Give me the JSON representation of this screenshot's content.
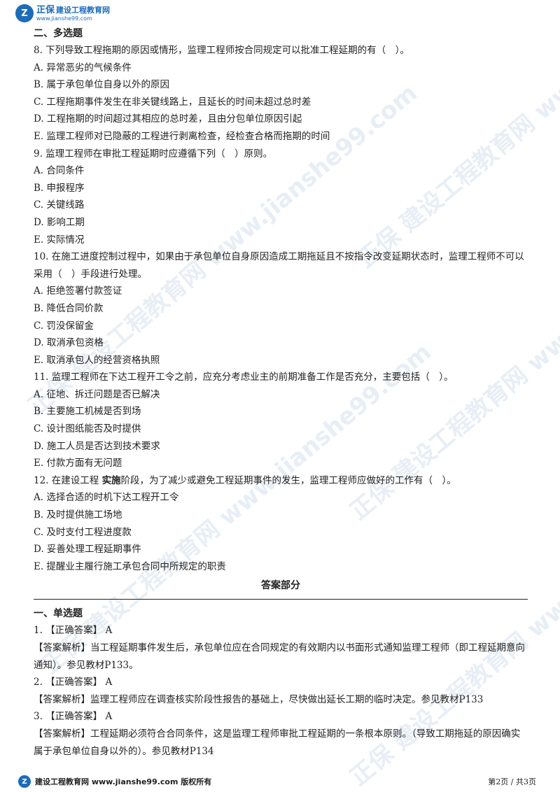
{
  "header": {
    "brand": "正保",
    "name": "建设工程教育网",
    "url": "www.jianshe99.com",
    "logo_glyph": "Z"
  },
  "watermark": "正保 建设工程教育网 www.jianshe99.com",
  "section_multi": "二、多选题",
  "questions": [
    {
      "stem": "8. 下列导致工程拖期的原因或情形，监理工程师按合同规定可以批准工程延期的有（　）。",
      "options": [
        "A. 异常恶劣的气候条件",
        "B. 属于承包单位自身以外的原因",
        "C. 工程拖期事件发生在非关键线路上，且延长的时间未超过总时差",
        "D. 工程拖期的时间超过其相应的总时差，且由分包单位原因引起",
        "E. 监理工程师对已隐蔽的工程进行剥离检查，经检查合格而拖期的时间"
      ]
    },
    {
      "stem": "9. 监理工程师在审批工程延期时应遵循下列（　）原则。",
      "options": [
        "A. 合同条件",
        "B. 申报程序",
        "C. 关键线路",
        "D. 影响工期",
        "E. 实际情况"
      ]
    },
    {
      "stem": "10. 在施工进度控制过程中，如果由于承包单位自身原因造成工期拖延且不按指令改变延期状态时，监理工程师不可以采用（　）手段进行处理。",
      "options": [
        "A. 拒绝签署付款签证",
        "B. 降低合同价款",
        "C. 罚没保留金",
        "D. 取消承包资格",
        "E. 取消承包人的经营资格执照"
      ]
    },
    {
      "stem": "11. 监理工程师在下达工程开工令之前，应充分考虑业主的前期准备工作是否充分，主要包括（　）。",
      "options": [
        "A. 征地、拆迁问题是否已解决",
        "B. 主要施工机械是否到场",
        "C. 设计图纸能否及时提供",
        "D. 施工人员是否达到技术要求",
        "E. 付款方面有无问题"
      ]
    }
  ],
  "q12": {
    "stem_pre": "12. 在建设工程 ",
    "stem_bold": "实施",
    "stem_post": "阶段，为了减少或避免工程延期事件的发生，监理工程师应做好的工作有（　）。",
    "options": [
      "A. 选择合适的时机下达工程开工令",
      "B. 及时提供施工场地",
      "C. 及时支付工程进度款",
      "D. 妥善处理工程延期事件",
      "E. 提醒业主履行施工承包合同中所规定的职责"
    ]
  },
  "answer_title": "答案部分",
  "section_single": "一、单选题",
  "answers": [
    {
      "head": "1. 【正确答案】 A",
      "analysis": "【答案解析】当工程延期事件发生后，承包单位应在合同规定的有效期内以书面形式通知监理工程师（即工程延期意向通知）。参见教材P133。"
    },
    {
      "head": "2. 【正确答案】 A",
      "analysis": "【答案解析】监理工程师应在调查核实阶段性报告的基础上，尽快做出延长工期的临时决定。参见教材P133"
    },
    {
      "head": "3. 【正确答案】 A",
      "analysis": "【答案解析】工程延期必须符合合同条件，这是监理工程师审批工程延期的一条根本原则。（导致工期拖延的原因确实属于承包单位自身以外的）。参见教材P134"
    }
  ],
  "footer": {
    "text": "建设工程教育网 www.jianshe99.com 版权所有",
    "pages": "第2页 / 共3页"
  },
  "colors": {
    "brand": "#1e6bb8",
    "watermark": "#e8eef5"
  }
}
